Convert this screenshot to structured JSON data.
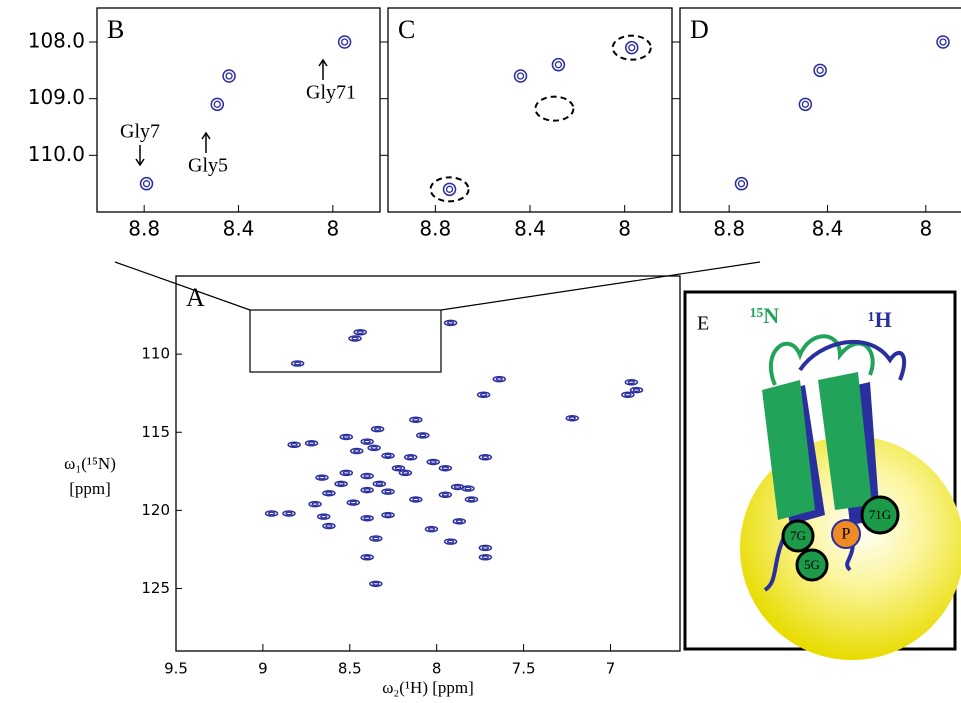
{
  "chart_data": [
    {
      "type": "scatter",
      "title": "B",
      "color": "#2b2f9e",
      "x": [
        8.79,
        8.49,
        8.44,
        7.95
      ],
      "values": [
        110.5,
        109.1,
        108.6,
        108.0
      ],
      "xlim": [
        9.0,
        7.8
      ],
      "ylim": [
        107.4,
        111.0
      ],
      "xticks": [
        8.8,
        8.4,
        8.0
      ],
      "yticks": [
        {
          "value": 108,
          "label": "108.0"
        },
        {
          "value": 109,
          "label": "109.0"
        },
        {
          "value": 110,
          "label": "110.0"
        }
      ],
      "annotations": [
        "Gly7",
        "Gly5",
        "Gly71"
      ]
    },
    {
      "type": "scatter",
      "title": "C",
      "color": "#2b2f9e",
      "x": [
        8.74,
        8.44,
        8.28,
        7.97
      ],
      "values": [
        110.6,
        108.6,
        108.4,
        108.1
      ],
      "xlim": [
        9.0,
        7.8
      ],
      "ylim": [
        107.4,
        111.0
      ],
      "xticks": [
        8.8,
        8.4,
        8.0
      ],
      "yticks": [
        108,
        109,
        110
      ]
    },
    {
      "type": "scatter",
      "title": "D",
      "color": "#2b2f9e",
      "x": [
        8.75,
        8.49,
        8.43,
        7.93
      ],
      "values": [
        110.5,
        109.1,
        108.5,
        108.0
      ],
      "xlim": [
        9.0,
        7.8
      ],
      "ylim": [
        107.4,
        111.0
      ],
      "xticks": [
        8.8,
        8.4,
        8.0
      ],
      "yticks": [
        108,
        109,
        110
      ]
    },
    {
      "type": "scatter",
      "title": "A",
      "color": "#2b2f9e",
      "x": [
        8.8,
        8.47,
        8.44,
        7.92,
        6.88,
        6.9,
        6.85,
        7.22,
        7.73,
        7.64,
        8.12,
        8.34,
        8.52,
        8.08,
        8.46,
        8.4,
        8.72,
        8.82,
        8.36,
        8.28,
        8.15,
        7.72,
        8.02,
        8.22,
        8.52,
        8.66,
        8.4,
        8.55,
        8.33,
        8.28,
        8.4,
        8.48,
        8.62,
        8.7,
        8.18,
        7.95,
        7.88,
        7.95,
        7.8,
        7.82,
        8.12,
        8.95,
        8.85,
        8.62,
        8.4,
        8.28,
        8.03,
        7.87,
        8.35,
        7.92,
        8.4,
        7.72,
        7.72,
        8.35,
        8.65
      ],
      "values": [
        110.6,
        109.0,
        108.6,
        108.0,
        111.8,
        112.6,
        112.3,
        114.1,
        112.6,
        111.6,
        114.2,
        114.8,
        115.3,
        115.2,
        116.2,
        115.6,
        115.7,
        115.8,
        116.0,
        116.5,
        116.6,
        116.6,
        116.9,
        117.3,
        117.6,
        117.9,
        117.8,
        118.3,
        118.3,
        118.8,
        118.7,
        119.5,
        118.9,
        119.6,
        117.6,
        117.3,
        118.5,
        119.0,
        119.3,
        118.6,
        119.3,
        120.2,
        120.2,
        121.0,
        120.5,
        120.3,
        121.2,
        120.7,
        121.8,
        122.0,
        123.0,
        122.4,
        123.0,
        124.7,
        120.4
      ],
      "xlim": [
        9.5,
        6.6
      ],
      "ylim": [
        105,
        129
      ],
      "xticks": [
        9.5,
        9.0,
        8.5,
        8.0,
        7.5,
        7.0
      ],
      "yticks": [
        110,
        115,
        120,
        125
      ],
      "xlabel": "ω₂(¹H) [ppm]",
      "ylabel": [
        "ω₁(¹⁵N)",
        "[ppm]"
      ]
    }
  ],
  "diagram": {
    "title": "E",
    "labels": [
      "¹⁵N",
      "¹H"
    ],
    "residues": [
      "7G",
      "P",
      "71G",
      "5G"
    ]
  }
}
